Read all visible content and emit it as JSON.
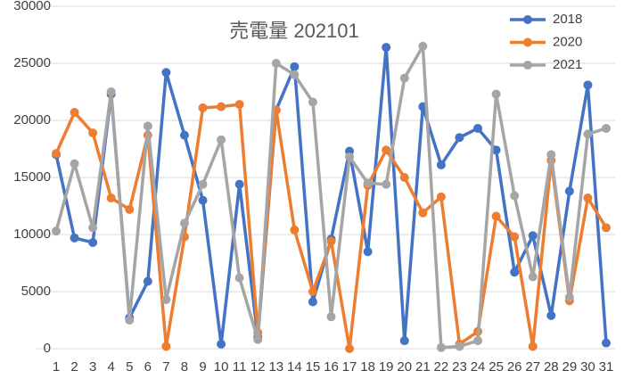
{
  "chart_data": {
    "type": "line",
    "title": "売電量 202101",
    "categories": [
      "1",
      "2",
      "3",
      "4",
      "5",
      "6",
      "7",
      "8",
      "9",
      "10",
      "11",
      "12",
      "13",
      "14",
      "15",
      "16",
      "17",
      "18",
      "19",
      "20",
      "21",
      "22",
      "23",
      "24",
      "25",
      "26",
      "27",
      "28",
      "29",
      "30",
      "31"
    ],
    "series": [
      {
        "name": "2018",
        "color": "#4472c4",
        "values": [
          17000,
          9700,
          9300,
          22300,
          2700,
          5900,
          24200,
          18700,
          13000,
          400,
          14400,
          1000,
          20900,
          24700,
          4100,
          9600,
          17300,
          8500,
          26400,
          700,
          21200,
          16100,
          18500,
          19300,
          17400,
          6700,
          9900,
          2900,
          13800,
          23100,
          500
        ]
      },
      {
        "name": "2020",
        "color": "#ed7d31",
        "values": [
          17100,
          20700,
          18900,
          13200,
          12200,
          18700,
          200,
          9800,
          21100,
          21200,
          21400,
          1400,
          20900,
          10400,
          5000,
          9400,
          0,
          14300,
          17400,
          15000,
          11900,
          13300,
          400,
          1500,
          11600,
          9800,
          200,
          16500,
          4200,
          13200,
          10600
        ]
      },
      {
        "name": "2021",
        "color": "#a5a5a5",
        "values": [
          10300,
          16200,
          10600,
          22500,
          2500,
          19500,
          4300,
          11000,
          14400,
          18300,
          6200,
          800,
          25000,
          24000,
          21600,
          2800,
          16800,
          14500,
          14400,
          23700,
          26500,
          100,
          200,
          700,
          22300,
          13400,
          6300,
          17000,
          4500,
          18800,
          19300
        ]
      }
    ],
    "ylim": [
      0,
      30000
    ],
    "yticks": [
      0,
      5000,
      10000,
      15000,
      20000,
      25000,
      30000
    ],
    "grid": true,
    "legend": "top-right"
  }
}
